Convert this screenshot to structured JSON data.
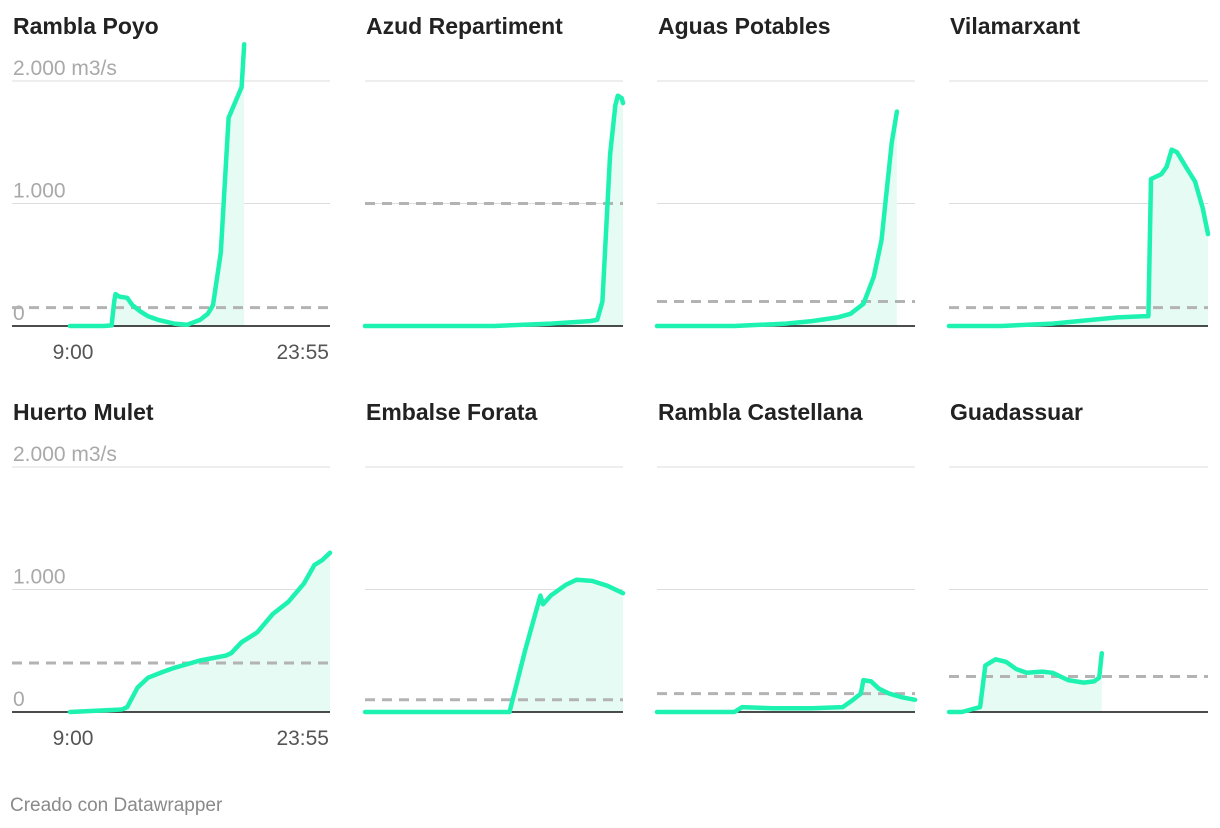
{
  "chart_data": {
    "type": "area",
    "x_tick_labels": [
      "9:00",
      "23:55"
    ],
    "y_tick_labels": [
      "0",
      "1.000",
      "2.000 m3/s"
    ],
    "ylim": [
      0,
      2000
    ],
    "grid": true,
    "colors": {
      "line": "#1ef2b0",
      "fill": "#e6fbf4",
      "threshold": "#b3b3b3",
      "grid": "#dddddd",
      "axis": "#111111"
    },
    "panels": [
      {
        "title": "Rambla Poyo",
        "threshold": 150,
        "points": [
          [
            0,
            0
          ],
          [
            0.13,
            0
          ],
          [
            0.16,
            5
          ],
          [
            0.17,
            200
          ],
          [
            0.175,
            260
          ],
          [
            0.19,
            240
          ],
          [
            0.22,
            230
          ],
          [
            0.24,
            170
          ],
          [
            0.27,
            120
          ],
          [
            0.3,
            80
          ],
          [
            0.34,
            50
          ],
          [
            0.4,
            20
          ],
          [
            0.45,
            10
          ],
          [
            0.5,
            50
          ],
          [
            0.53,
            100
          ],
          [
            0.55,
            170
          ],
          [
            0.58,
            600
          ],
          [
            0.61,
            1700
          ],
          [
            0.64,
            1850
          ],
          [
            0.66,
            1950
          ],
          [
            0.67,
            2300
          ]
        ]
      },
      {
        "title": "Azud Repartiment",
        "threshold": 1000,
        "points": [
          [
            0,
            0
          ],
          [
            0.5,
            0
          ],
          [
            0.72,
            20
          ],
          [
            0.87,
            40
          ],
          [
            0.9,
            50
          ],
          [
            0.92,
            200
          ],
          [
            0.95,
            1400
          ],
          [
            0.97,
            1800
          ],
          [
            0.98,
            1880
          ],
          [
            0.995,
            1860
          ],
          [
            1,
            1820
          ]
        ]
      },
      {
        "title": "Aguas Potables",
        "threshold": 200,
        "points": [
          [
            0,
            0
          ],
          [
            0.3,
            0
          ],
          [
            0.5,
            20
          ],
          [
            0.6,
            40
          ],
          [
            0.7,
            70
          ],
          [
            0.75,
            100
          ],
          [
            0.8,
            180
          ],
          [
            0.84,
            400
          ],
          [
            0.87,
            700
          ],
          [
            0.89,
            1100
          ],
          [
            0.91,
            1500
          ],
          [
            0.93,
            1750
          ]
        ]
      },
      {
        "title": "Vilamarxant",
        "threshold": 150,
        "points": [
          [
            0,
            0
          ],
          [
            0.2,
            0
          ],
          [
            0.4,
            20
          ],
          [
            0.55,
            50
          ],
          [
            0.65,
            70
          ],
          [
            0.75,
            80
          ],
          [
            0.77,
            80
          ],
          [
            0.78,
            1200
          ],
          [
            0.82,
            1240
          ],
          [
            0.84,
            1300
          ],
          [
            0.86,
            1440
          ],
          [
            0.88,
            1420
          ],
          [
            0.92,
            1280
          ],
          [
            0.95,
            1180
          ],
          [
            0.98,
            960
          ],
          [
            1,
            750
          ]
        ]
      },
      {
        "title": "Huerto Mulet",
        "threshold": 400,
        "points": [
          [
            0,
            0
          ],
          [
            0.2,
            20
          ],
          [
            0.22,
            40
          ],
          [
            0.26,
            200
          ],
          [
            0.3,
            280
          ],
          [
            0.36,
            330
          ],
          [
            0.4,
            360
          ],
          [
            0.5,
            420
          ],
          [
            0.6,
            460
          ],
          [
            0.62,
            480
          ],
          [
            0.66,
            570
          ],
          [
            0.72,
            650
          ],
          [
            0.78,
            800
          ],
          [
            0.84,
            900
          ],
          [
            0.9,
            1050
          ],
          [
            0.94,
            1200
          ],
          [
            0.97,
            1240
          ],
          [
            1,
            1300
          ]
        ]
      },
      {
        "title": "Embalse Forata",
        "threshold": 100,
        "points": [
          [
            0,
            0
          ],
          [
            0.56,
            0
          ],
          [
            0.62,
            500
          ],
          [
            0.68,
            950
          ],
          [
            0.69,
            880
          ],
          [
            0.72,
            950
          ],
          [
            0.78,
            1040
          ],
          [
            0.82,
            1080
          ],
          [
            0.88,
            1070
          ],
          [
            0.94,
            1030
          ],
          [
            1,
            970
          ]
        ]
      },
      {
        "title": "Rambla Castellana",
        "threshold": 150,
        "points": [
          [
            0,
            0
          ],
          [
            0.3,
            0
          ],
          [
            0.33,
            40
          ],
          [
            0.45,
            30
          ],
          [
            0.6,
            30
          ],
          [
            0.72,
            40
          ],
          [
            0.76,
            100
          ],
          [
            0.79,
            150
          ],
          [
            0.8,
            260
          ],
          [
            0.83,
            250
          ],
          [
            0.86,
            190
          ],
          [
            0.9,
            150
          ],
          [
            0.95,
            120
          ],
          [
            1,
            100
          ]
        ]
      },
      {
        "title": "Guadassuar",
        "threshold": 290,
        "points": [
          [
            0,
            0
          ],
          [
            0.05,
            0
          ],
          [
            0.12,
            40
          ],
          [
            0.14,
            380
          ],
          [
            0.18,
            430
          ],
          [
            0.22,
            410
          ],
          [
            0.26,
            350
          ],
          [
            0.3,
            320
          ],
          [
            0.36,
            330
          ],
          [
            0.4,
            320
          ],
          [
            0.46,
            260
          ],
          [
            0.52,
            240
          ],
          [
            0.56,
            250
          ],
          [
            0.58,
            280
          ],
          [
            0.59,
            480
          ]
        ]
      }
    ]
  },
  "footer": {
    "credit": "Creado con Datawrapper"
  }
}
